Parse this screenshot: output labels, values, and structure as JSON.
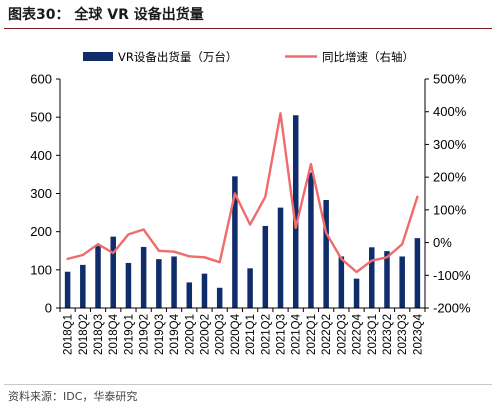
{
  "header": {
    "figure_title": "图表30：  全球 VR 设备出货量"
  },
  "footer": {
    "source": "资料来源：IDC，华泰研究"
  },
  "colors": {
    "bar": "#0f2d6b",
    "line": "#f06b6b",
    "axis": "#000000"
  },
  "chart_data": {
    "type": "bar",
    "title": "",
    "categories": [
      "2018Q1",
      "2018Q2",
      "2018Q3",
      "2018Q4",
      "2019Q1",
      "2019Q2",
      "2019Q3",
      "2019Q4",
      "2020Q1",
      "2020Q2",
      "2020Q3",
      "2020Q4",
      "2021Q1",
      "2021Q2",
      "2021Q3",
      "2021Q4",
      "2022Q1",
      "2022Q2",
      "2022Q3",
      "2022Q4",
      "2023Q1",
      "2023Q2",
      "2023Q3",
      "2023Q4"
    ],
    "series": [
      {
        "name": "VR设备出货量（万台）",
        "type": "bar",
        "axis": "left",
        "values": [
          95,
          113,
          163,
          187,
          118,
          160,
          128,
          135,
          67,
          90,
          53,
          345,
          104,
          215,
          263,
          505,
          355,
          283,
          135,
          77,
          159,
          149,
          135,
          183
        ]
      },
      {
        "name": "同比增速（右轴）",
        "type": "line",
        "axis": "right",
        "values": [
          -50,
          -38,
          -5,
          -32,
          25,
          40,
          -25,
          -28,
          -42,
          -45,
          -60,
          150,
          55,
          140,
          395,
          45,
          240,
          30,
          -50,
          -90,
          -55,
          -45,
          -5,
          140
        ]
      }
    ],
    "y_left": {
      "ylim": [
        0,
        600
      ],
      "ticks": [
        0,
        100,
        200,
        300,
        400,
        500,
        600
      ],
      "tick_labels": [
        "0",
        "100",
        "200",
        "300",
        "400",
        "500",
        "600"
      ]
    },
    "y_right": {
      "ylim": [
        -200,
        500
      ],
      "ticks": [
        -200,
        -100,
        0,
        100,
        200,
        300,
        400,
        500
      ],
      "tick_labels": [
        "-200%",
        "-100%",
        "0%",
        "100%",
        "200%",
        "300%",
        "400%",
        "500%"
      ]
    },
    "legend": {
      "position": "top",
      "entries": [
        "VR设备出货量（万台）",
        "同比增速（右轴）"
      ]
    },
    "grid": false
  }
}
